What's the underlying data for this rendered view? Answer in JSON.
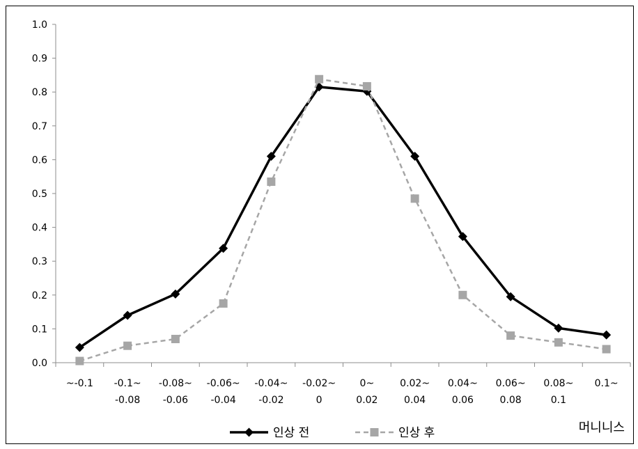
{
  "chart_data": {
    "type": "line",
    "xlabel": "머니니스",
    "ylim": [
      0,
      1.0
    ],
    "y_ticks": [
      "0.0",
      "0.1",
      "0.2",
      "0.3",
      "0.4",
      "0.5",
      "0.6",
      "0.7",
      "0.8",
      "0.9",
      "1.0"
    ],
    "categories": [
      [
        "~-0.1",
        ""
      ],
      [
        "-0.1~",
        "-0.08"
      ],
      [
        "-0.08~",
        "-0.06"
      ],
      [
        "-0.06~",
        "-0.04"
      ],
      [
        "-0.04~",
        "-0.02"
      ],
      [
        "-0.02~",
        "0"
      ],
      [
        "0~",
        "0.02"
      ],
      [
        "0.02~",
        "0.04"
      ],
      [
        "0.04~",
        "0.06"
      ],
      [
        "0.06~",
        "0.08"
      ],
      [
        "0.08~",
        "0.1"
      ],
      [
        "0.1~",
        ""
      ]
    ],
    "series": [
      {
        "name": "인상 전",
        "color": "#000000",
        "marker": "diamond",
        "dash": "solid",
        "values": [
          0.045,
          0.14,
          0.203,
          0.338,
          0.61,
          0.815,
          0.802,
          0.61,
          0.373,
          0.195,
          0.102,
          0.082
        ]
      },
      {
        "name": "인상 후",
        "color": "#a6a6a6",
        "marker": "square",
        "dash": "dashed",
        "values": [
          0.005,
          0.05,
          0.07,
          0.175,
          0.535,
          0.838,
          0.817,
          0.485,
          0.2,
          0.08,
          0.06,
          0.04
        ]
      }
    ],
    "legend_position": "bottom-center",
    "grid": false
  }
}
